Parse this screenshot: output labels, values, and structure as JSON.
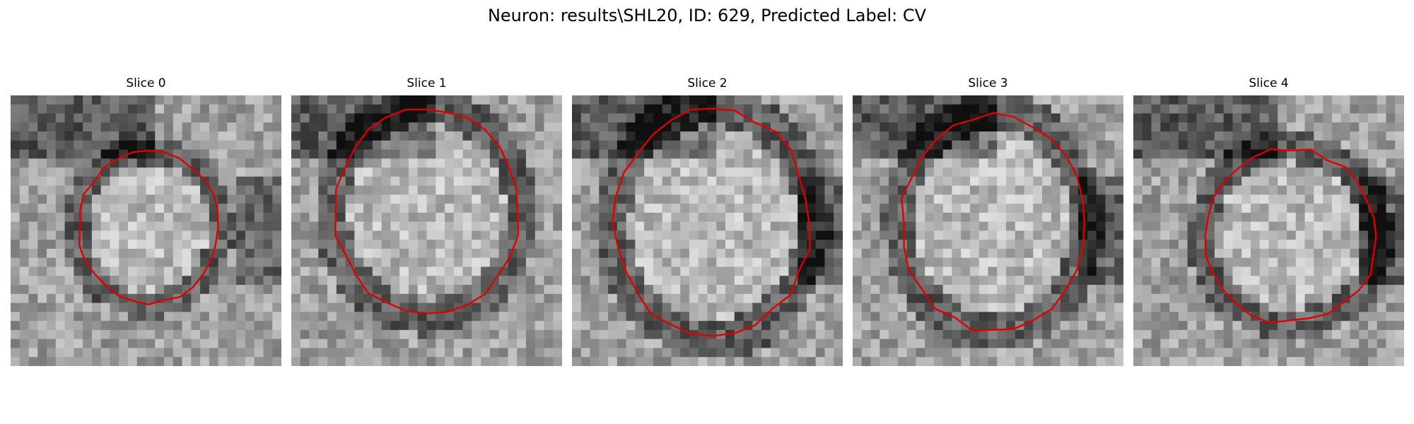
{
  "figure": {
    "title": "Neuron: results\\SHL20, ID: 629, Predicted Label: CV",
    "contour_color": "#e00000",
    "colormap": "grayscale"
  },
  "panels": [
    {
      "title": "Slice 0",
      "seed": 11,
      "dark": "upper-left and right",
      "center": [
        0.51,
        0.49
      ],
      "rx": 0.26,
      "ry": 0.28
    },
    {
      "title": "Slice 1",
      "seed": 23,
      "dark": "upper-left",
      "center": [
        0.5,
        0.43
      ],
      "rx": 0.34,
      "ry": 0.38
    },
    {
      "title": "Slice 2",
      "seed": 37,
      "dark": "upper-left and right",
      "center": [
        0.52,
        0.47
      ],
      "rx": 0.36,
      "ry": 0.42
    },
    {
      "title": "Slice 3",
      "seed": 41,
      "dark": "upper-left and right",
      "center": [
        0.52,
        0.47
      ],
      "rx": 0.34,
      "ry": 0.4
    },
    {
      "title": "Slice 4",
      "seed": 53,
      "dark": "right side",
      "center": [
        0.58,
        0.52
      ],
      "rx": 0.32,
      "ry": 0.32
    }
  ]
}
